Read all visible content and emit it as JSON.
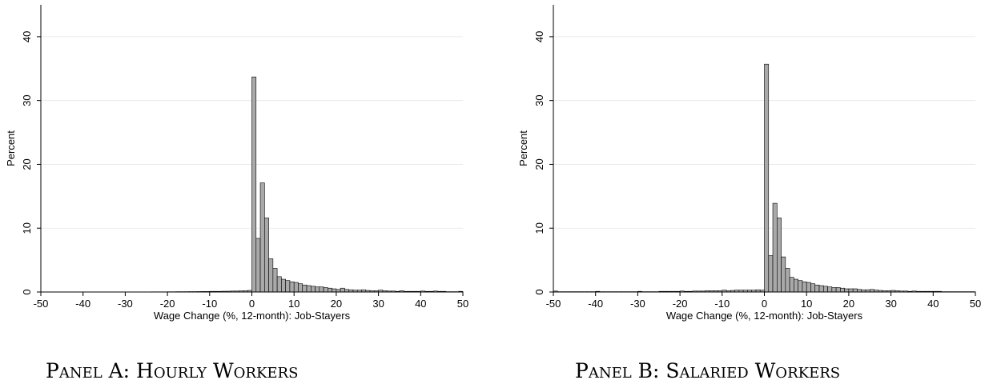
{
  "chart_data": [
    {
      "type": "bar",
      "panel": "a",
      "ylabel": "Percent",
      "xlabel": "Wage Change (%, 12-month): Job-Stayers",
      "caption": "Panel A: Hourly Workers",
      "xlim": [
        -50,
        50
      ],
      "ylim": [
        0,
        45
      ],
      "xticks": [
        "-50",
        "-40",
        "-30",
        "-20",
        "-10",
        "0",
        "10",
        "20",
        "30",
        "40",
        "50"
      ],
      "yticks": [
        "0",
        "10",
        "20",
        "30",
        "40"
      ],
      "bin_width": 1,
      "bins_start": [
        -50,
        -49,
        -48,
        -47,
        -46,
        -45,
        -44,
        -43,
        -42,
        -41,
        -40,
        -39,
        -38,
        -37,
        -36,
        -35,
        -34,
        -33,
        -32,
        -31,
        -30,
        -29,
        -28,
        -27,
        -26,
        -25,
        -24,
        -23,
        -22,
        -21,
        -20,
        -19,
        -18,
        -17,
        -16,
        -15,
        -14,
        -13,
        -12,
        -11,
        -10,
        -9,
        -8,
        -7,
        -6,
        -5,
        -4,
        -3,
        -2,
        -1,
        0,
        1,
        2,
        3,
        4,
        5,
        6,
        7,
        8,
        9,
        10,
        11,
        12,
        13,
        14,
        15,
        16,
        17,
        18,
        19,
        20,
        21,
        22,
        23,
        24,
        25,
        26,
        27,
        28,
        29,
        30,
        31,
        32,
        33,
        34,
        35,
        36,
        37,
        38,
        39,
        40,
        41,
        42,
        43,
        44,
        45,
        46,
        47,
        48,
        49
      ],
      "values": [
        0.02,
        0.01,
        0.01,
        0.01,
        0.01,
        0.01,
        0.01,
        0.01,
        0.01,
        0.01,
        0.01,
        0.01,
        0.01,
        0.01,
        0.01,
        0.01,
        0.01,
        0.01,
        0.01,
        0.01,
        0.02,
        0.02,
        0.02,
        0.02,
        0.02,
        0.02,
        0.03,
        0.03,
        0.03,
        0.03,
        0.04,
        0.04,
        0.05,
        0.05,
        0.05,
        0.06,
        0.06,
        0.07,
        0.08,
        0.08,
        0.1,
        0.1,
        0.1,
        0.12,
        0.12,
        0.15,
        0.15,
        0.18,
        0.2,
        0.25,
        33.7,
        8.4,
        17.1,
        11.6,
        5.2,
        3.7,
        2.4,
        2.0,
        1.8,
        1.6,
        1.5,
        1.3,
        1.1,
        1.0,
        0.9,
        0.8,
        0.8,
        0.7,
        0.6,
        0.5,
        0.4,
        0.6,
        0.4,
        0.35,
        0.3,
        0.3,
        0.35,
        0.25,
        0.2,
        0.2,
        0.3,
        0.2,
        0.15,
        0.15,
        0.1,
        0.2,
        0.1,
        0.1,
        0.1,
        0.1,
        0.15,
        0.1,
        0.1,
        0.15,
        0.1,
        0.1,
        0.05,
        0.05,
        0.05,
        0.1
      ]
    },
    {
      "type": "bar",
      "panel": "b",
      "ylabel": "Percent",
      "xlabel": "Wage Change (%, 12-month): Job-Stayers",
      "caption": "Panel B: Salaried Workers",
      "xlim": [
        -50,
        50
      ],
      "ylim": [
        0,
        45
      ],
      "xticks": [
        "-50",
        "-40",
        "-30",
        "-20",
        "-10",
        "0",
        "10",
        "20",
        "30",
        "40",
        "50"
      ],
      "yticks": [
        "0",
        "10",
        "20",
        "30",
        "40"
      ],
      "bin_width": 1,
      "bins_start": [
        -50,
        -49,
        -48,
        -47,
        -46,
        -45,
        -44,
        -43,
        -42,
        -41,
        -40,
        -39,
        -38,
        -37,
        -36,
        -35,
        -34,
        -33,
        -32,
        -31,
        -30,
        -29,
        -28,
        -27,
        -26,
        -25,
        -24,
        -23,
        -22,
        -21,
        -20,
        -19,
        -18,
        -17,
        -16,
        -15,
        -14,
        -13,
        -12,
        -11,
        -10,
        -9,
        -8,
        -7,
        -6,
        -5,
        -4,
        -3,
        -2,
        -1,
        0,
        1,
        2,
        3,
        4,
        5,
        6,
        7,
        8,
        9,
        10,
        11,
        12,
        13,
        14,
        15,
        16,
        17,
        18,
        19,
        20,
        21,
        22,
        23,
        24,
        25,
        26,
        27,
        28,
        29,
        30,
        31,
        32,
        33,
        34,
        35,
        36,
        37,
        38,
        39,
        40,
        41,
        42,
        43,
        44,
        45,
        46,
        47,
        48,
        49
      ],
      "values": [
        0.15,
        0.05,
        0.05,
        0.05,
        0.05,
        0.05,
        0.05,
        0.05,
        0.05,
        0.05,
        0.1,
        0.05,
        0.05,
        0.05,
        0.05,
        0.05,
        0.05,
        0.05,
        0.05,
        0.05,
        0.1,
        0.05,
        0.05,
        0.05,
        0.05,
        0.1,
        0.1,
        0.1,
        0.1,
        0.1,
        0.15,
        0.1,
        0.1,
        0.15,
        0.15,
        0.15,
        0.2,
        0.2,
        0.2,
        0.2,
        0.3,
        0.2,
        0.25,
        0.3,
        0.3,
        0.3,
        0.3,
        0.3,
        0.35,
        0.3,
        35.7,
        5.7,
        13.9,
        11.6,
        5.5,
        3.7,
        2.3,
        2.0,
        1.8,
        1.6,
        1.5,
        1.3,
        1.1,
        1.0,
        0.9,
        0.8,
        0.7,
        0.7,
        0.6,
        0.5,
        0.5,
        0.5,
        0.4,
        0.35,
        0.35,
        0.4,
        0.3,
        0.25,
        0.2,
        0.2,
        0.25,
        0.2,
        0.15,
        0.15,
        0.1,
        0.15,
        0.1,
        0.1,
        0.1,
        0.1,
        0.1,
        0.1,
        0.05,
        0.05,
        0.05,
        0.05,
        0.05,
        0.05,
        0.05,
        0.05
      ]
    }
  ]
}
